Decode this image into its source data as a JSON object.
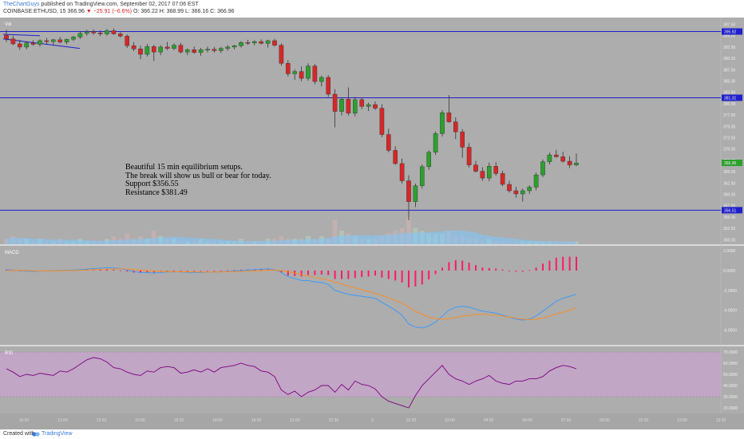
{
  "header": {
    "author": "TheChartGuys",
    "published": "published on TradingView.com, September 02, 2017 07:06 EST",
    "symbol": "COINBASE:ETHUSD, 15",
    "price": "366.96",
    "change": "▼ −25.91 (−6.6%)",
    "ohlc": "O: 366.22 H: 368.99 L: 366.16 C: 366.96"
  },
  "annotation": {
    "lines": [
      "Beautiful 15 min equilibrium setups.",
      "The break will show us bull or bear for today.",
      "Support $356.55",
      "Resistance $381.49"
    ]
  },
  "pane_labels": {
    "volume": "Vol",
    "macd": "MACD",
    "rsi": "RSI"
  },
  "colors": {
    "up": "#2ca02c",
    "down": "#d62728",
    "level_line": "#1f1fcc",
    "macd_line": "#3399ff",
    "signal_line": "#ff8c1a",
    "hist": "#ff1a66",
    "rsi_line": "#800080",
    "rsi_band": "#c9a3cf"
  },
  "price_badges": {
    "resistance_top": "395.92",
    "resistance": "381.31",
    "last": "366.96",
    "support": "356.51"
  },
  "footer": {
    "created": "Created with",
    "brand": "TradingView"
  },
  "chart_data": [
    {
      "type": "candlestick",
      "title": "",
      "y_axis_ticks": [
        "397.50",
        "395.00",
        "392.50",
        "390.00",
        "387.50",
        "385.00",
        "382.50",
        "380.00",
        "377.50",
        "375.00",
        "372.50",
        "370.00",
        "367.50",
        "365.00",
        "362.50",
        "360.00",
        "357.50",
        "355.00",
        "352.50",
        "350.00"
      ],
      "ylim": [
        349,
        399
      ],
      "x_axis_ticks": [
        "10:30",
        "12:00",
        "13:30",
        "15:00",
        "16:30",
        "18:00",
        "19:30",
        "21:00",
        "22:30",
        "2",
        "01:30",
        "03:00",
        "04:30",
        "06:00",
        "07:30",
        "09:00",
        "10:30",
        "12:00",
        "13:30"
      ],
      "horizontal_levels": [
        395.92,
        381.31,
        356.51
      ],
      "ohlc": [
        [
          395.1,
          396.3,
          393.6,
          394.3
        ],
        [
          394.3,
          395.0,
          392.9,
          393.2
        ],
        [
          393.2,
          394.1,
          391.9,
          392.5
        ],
        [
          392.5,
          393.8,
          392.0,
          393.4
        ],
        [
          393.4,
          394.0,
          392.8,
          393.1
        ],
        [
          393.1,
          394.2,
          392.6,
          393.9
        ],
        [
          393.9,
          394.5,
          393.2,
          393.7
        ],
        [
          393.7,
          394.3,
          393.0,
          394.1
        ],
        [
          394.1,
          394.7,
          393.3,
          393.6
        ],
        [
          393.6,
          394.4,
          393.1,
          394.2
        ],
        [
          394.2,
          395.0,
          393.8,
          394.7
        ],
        [
          394.7,
          395.9,
          394.3,
          395.5
        ],
        [
          395.5,
          396.3,
          395.0,
          395.9
        ],
        [
          395.9,
          396.4,
          395.2,
          395.6
        ],
        [
          395.6,
          396.2,
          394.9,
          395.4
        ],
        [
          395.4,
          396.5,
          395.0,
          396.1
        ],
        [
          396.1,
          396.6,
          395.2,
          395.4
        ],
        [
          395.4,
          395.8,
          394.6,
          394.9
        ],
        [
          394.9,
          395.3,
          392.3,
          392.8
        ],
        [
          392.8,
          393.6,
          391.6,
          392.1
        ],
        [
          392.1,
          392.8,
          389.8,
          390.9
        ],
        [
          390.9,
          393.2,
          390.4,
          392.6
        ],
        [
          392.6,
          393.0,
          389.4,
          391.4
        ],
        [
          391.4,
          392.9,
          390.7,
          392.5
        ],
        [
          392.5,
          393.6,
          391.8,
          392.2
        ],
        [
          392.2,
          393.3,
          391.8,
          392.9
        ],
        [
          392.9,
          393.4,
          391.1,
          391.4
        ],
        [
          391.4,
          392.2,
          390.7,
          391.9
        ],
        [
          391.9,
          392.6,
          391.0,
          391.3
        ],
        [
          391.3,
          392.3,
          390.6,
          391.9
        ],
        [
          391.9,
          392.6,
          391.3,
          392.0
        ],
        [
          392.0,
          392.5,
          391.3,
          391.7
        ],
        [
          391.7,
          392.5,
          391.2,
          392.2
        ],
        [
          392.2,
          392.9,
          391.7,
          392.5
        ],
        [
          392.5,
          393.0,
          392.0,
          392.8
        ],
        [
          392.8,
          393.8,
          392.4,
          393.5
        ],
        [
          393.5,
          394.1,
          393.0,
          393.4
        ],
        [
          393.4,
          394.0,
          392.9,
          393.7
        ],
        [
          393.7,
          394.2,
          393.1,
          393.3
        ],
        [
          393.3,
          394.1,
          392.4,
          393.9
        ],
        [
          393.9,
          394.3,
          392.6,
          392.9
        ],
        [
          392.9,
          393.3,
          388.4,
          388.9
        ],
        [
          388.9,
          389.6,
          386.0,
          386.6
        ],
        [
          386.6,
          387.6,
          385.3,
          387.1
        ],
        [
          387.1,
          388.2,
          385.0,
          385.6
        ],
        [
          385.6,
          388.9,
          385.1,
          388.3
        ],
        [
          388.3,
          388.8,
          384.3,
          384.9
        ],
        [
          384.9,
          386.2,
          383.8,
          385.8
        ],
        [
          385.8,
          386.3,
          381.5,
          382.1
        ],
        [
          382.1,
          383.2,
          374.8,
          378.3
        ],
        [
          378.3,
          381.4,
          377.4,
          381.0
        ],
        [
          381.0,
          383.6,
          377.4,
          377.9
        ],
        [
          377.9,
          381.5,
          377.2,
          380.9
        ],
        [
          380.9,
          381.4,
          378.8,
          379.4
        ],
        [
          379.4,
          380.2,
          378.4,
          379.8
        ],
        [
          379.8,
          380.5,
          378.6,
          379.0
        ],
        [
          379.0,
          379.9,
          372.6,
          373.2
        ],
        [
          373.2,
          374.5,
          369.3,
          369.7
        ],
        [
          369.7,
          370.6,
          366.5,
          366.8
        ],
        [
          366.8,
          367.9,
          362.4,
          363.0
        ],
        [
          363.0,
          364.2,
          354.3,
          358.4
        ],
        [
          358.4,
          362.4,
          357.2,
          361.9
        ],
        [
          361.9,
          366.6,
          361.3,
          366.1
        ],
        [
          366.1,
          369.7,
          365.4,
          369.3
        ],
        [
          369.3,
          373.9,
          368.7,
          373.4
        ],
        [
          373.4,
          378.6,
          372.8,
          378.0
        ],
        [
          378.0,
          381.9,
          375.8,
          376.0
        ],
        [
          376.0,
          377.0,
          372.2,
          373.8
        ],
        [
          373.8,
          374.4,
          368.1,
          370.4
        ],
        [
          370.4,
          371.3,
          365.9,
          366.5
        ],
        [
          366.5,
          367.4,
          364.8,
          365.1
        ],
        [
          365.1,
          366.0,
          363.0,
          363.6
        ],
        [
          363.6,
          367.0,
          362.9,
          366.2
        ],
        [
          366.2,
          367.1,
          364.1,
          364.6
        ],
        [
          364.6,
          365.2,
          361.8,
          362.2
        ],
        [
          362.2,
          363.0,
          360.4,
          360.8
        ],
        [
          360.8,
          361.7,
          359.3,
          360.1
        ],
        [
          360.1,
          361.3,
          358.4,
          360.8
        ],
        [
          360.8,
          362.0,
          360.1,
          361.6
        ],
        [
          361.6,
          364.8,
          360.9,
          364.3
        ],
        [
          364.3,
          367.7,
          363.8,
          367.2
        ],
        [
          367.2,
          369.2,
          366.6,
          368.7
        ],
        [
          368.7,
          369.8,
          368.1,
          368.3
        ],
        [
          368.3,
          369.4,
          367.0,
          367.3
        ],
        [
          367.3,
          368.4,
          365.8,
          366.5
        ],
        [
          366.5,
          369.0,
          366.2,
          366.9
        ]
      ]
    },
    {
      "type": "bar",
      "title": "Vol",
      "values": [
        2,
        3,
        2,
        2,
        1,
        2,
        1,
        1,
        2,
        1,
        1,
        2,
        1,
        1,
        1,
        2,
        3,
        2,
        4,
        2,
        3,
        2,
        5,
        3,
        2,
        2,
        1,
        1,
        1,
        2,
        1,
        1,
        1,
        1,
        1,
        2,
        1,
        1,
        1,
        2,
        2,
        3,
        2,
        2,
        2,
        3,
        2,
        3,
        2,
        9,
        5,
        4,
        3,
        2,
        2,
        2,
        3,
        4,
        5,
        6,
        10,
        6,
        5,
        4,
        4,
        4,
        5,
        3,
        3,
        2,
        2,
        1,
        2,
        1,
        1,
        1,
        1,
        1,
        1,
        1,
        1,
        1,
        1,
        1,
        1,
        1
      ]
    },
    {
      "type": "line",
      "title": "MACD",
      "y_axis_ticks": [
        "2.0000",
        "0.0000",
        "-2.0000",
        "-4.0000",
        "-6.0000"
      ],
      "ylim": [
        -7.5,
        2.5
      ],
      "series": [
        {
          "values": [
            0.1,
            0.05,
            0.0,
            -0.05,
            -0.08,
            -0.05,
            -0.03,
            0.0,
            0.02,
            0.04,
            0.06,
            0.1,
            0.15,
            0.2,
            0.25,
            0.3,
            0.28,
            0.2,
            0.05,
            -0.1,
            -0.2,
            -0.2,
            -0.25,
            -0.2,
            -0.15,
            -0.12,
            -0.15,
            -0.18,
            -0.2,
            -0.2,
            -0.18,
            -0.15,
            -0.12,
            -0.1,
            -0.05,
            0.0,
            0.05,
            0.1,
            0.15,
            0.18,
            0.1,
            -0.2,
            -0.6,
            -0.8,
            -1.0,
            -1.0,
            -1.15,
            -1.2,
            -1.4,
            -2.0,
            -2.2,
            -2.4,
            -2.5,
            -2.6,
            -2.7,
            -2.8,
            -3.2,
            -3.6,
            -4.0,
            -4.5,
            -5.4,
            -5.7,
            -5.8,
            -5.6,
            -5.2,
            -4.6,
            -4.0,
            -3.7,
            -3.6,
            -3.7,
            -3.9,
            -4.1,
            -4.2,
            -4.3,
            -4.5,
            -4.7,
            -4.9,
            -5.0,
            -4.9,
            -4.6,
            -4.1,
            -3.6,
            -3.1,
            -2.8,
            -2.6,
            -2.4
          ]
        },
        {
          "values": [
            0.0,
            0.02,
            0.02,
            0.0,
            -0.02,
            -0.03,
            -0.03,
            -0.02,
            -0.01,
            0.0,
            0.02,
            0.04,
            0.06,
            0.09,
            0.12,
            0.15,
            0.18,
            0.18,
            0.15,
            0.1,
            0.04,
            0.0,
            -0.05,
            -0.08,
            -0.1,
            -0.11,
            -0.12,
            -0.13,
            -0.14,
            -0.15,
            -0.16,
            -0.15,
            -0.14,
            -0.13,
            -0.11,
            -0.09,
            -0.06,
            -0.03,
            0.0,
            0.04,
            0.05,
            0.0,
            -0.1,
            -0.25,
            -0.4,
            -0.55,
            -0.7,
            -0.8,
            -0.95,
            -1.15,
            -1.35,
            -1.55,
            -1.75,
            -1.95,
            -2.1,
            -2.3,
            -2.5,
            -2.75,
            -3.0,
            -3.3,
            -3.7,
            -4.1,
            -4.4,
            -4.7,
            -4.85,
            -4.9,
            -4.85,
            -4.75,
            -4.6,
            -4.5,
            -4.45,
            -4.4,
            -4.45,
            -4.5,
            -4.6,
            -4.7,
            -4.8,
            -4.9,
            -4.95,
            -4.9,
            -4.8,
            -4.6,
            -4.4,
            -4.2,
            -4.0,
            -3.8
          ]
        }
      ],
      "histogram": [
        0.1,
        0.03,
        -0.02,
        -0.05,
        -0.06,
        -0.02,
        0.0,
        0.02,
        0.03,
        0.04,
        0.04,
        0.06,
        0.09,
        0.11,
        0.13,
        0.15,
        0.1,
        0.02,
        -0.1,
        -0.2,
        -0.24,
        -0.2,
        -0.2,
        -0.12,
        -0.05,
        -0.01,
        -0.03,
        -0.05,
        -0.06,
        -0.05,
        -0.02,
        0.0,
        0.02,
        0.03,
        0.06,
        0.09,
        0.11,
        0.13,
        0.15,
        0.14,
        0.05,
        -0.2,
        -0.5,
        -0.55,
        -0.6,
        -0.45,
        -0.45,
        -0.4,
        -0.45,
        -0.85,
        -0.85,
        -0.85,
        -0.75,
        -0.65,
        -0.6,
        -0.5,
        -0.7,
        -0.85,
        -1.0,
        -1.2,
        -1.7,
        -1.6,
        -1.4,
        -0.9,
        -0.35,
        0.3,
        0.85,
        1.05,
        1.0,
        0.8,
        0.55,
        0.3,
        0.25,
        0.2,
        0.1,
        0.0,
        -0.1,
        -0.1,
        0.05,
        0.3,
        0.7,
        1.0,
        1.3,
        1.4,
        1.4,
        1.4
      ]
    },
    {
      "type": "line",
      "title": "RSI",
      "y_axis_ticks": [
        "70.0000",
        "60.0000",
        "50.0000",
        "40.0000",
        "30.0000",
        "20.0000"
      ],
      "ylim": [
        15,
        75
      ],
      "band": [
        30,
        70
      ],
      "values": [
        55,
        52,
        48,
        50,
        49,
        51,
        50,
        49,
        53,
        52,
        55,
        59,
        63,
        65,
        64,
        61,
        56,
        55,
        52,
        50,
        49,
        53,
        52,
        56,
        57,
        56,
        51,
        52,
        54,
        52,
        55,
        52,
        56,
        57,
        58,
        60,
        58,
        57,
        53,
        52,
        48,
        36,
        32,
        35,
        30,
        34,
        36,
        40,
        40,
        34,
        41,
        36,
        44,
        41,
        40,
        37,
        30,
        26,
        24,
        22,
        20,
        31,
        40,
        46,
        52,
        58,
        50,
        46,
        44,
        41,
        44,
        46,
        49,
        44,
        42,
        41,
        44,
        44,
        46,
        46,
        48,
        53,
        56,
        58,
        57,
        55
      ]
    }
  ]
}
